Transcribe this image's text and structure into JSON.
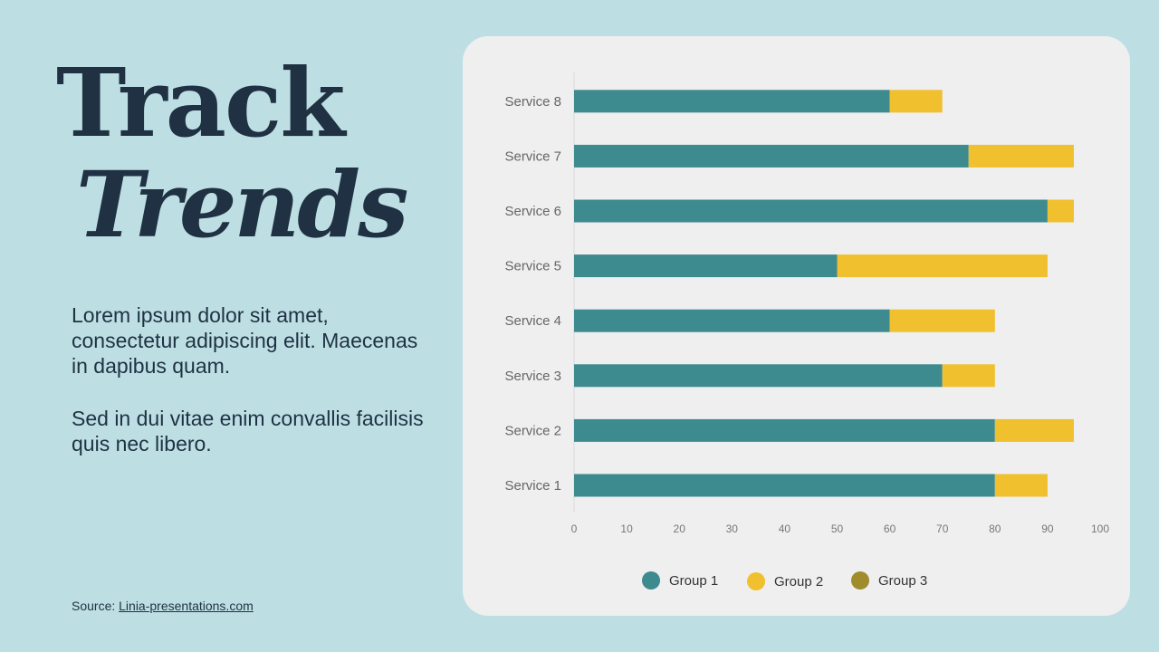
{
  "title": {
    "line1": "Track",
    "line2": "Trends"
  },
  "body": {
    "paragraph1": "Lorem ipsum dolor sit amet, consectetur adipiscing elit. Maecenas in dapibus quam.",
    "paragraph2": "Sed in dui vitae enim convallis facilisis quis nec libero."
  },
  "source": {
    "label": "Source: ",
    "link": "Linia-presentations.com"
  },
  "chart_data": {
    "type": "bar",
    "orientation": "horizontal",
    "stacked": true,
    "categories": [
      "Service 1",
      "Service 2",
      "Service 3",
      "Service 4",
      "Service 5",
      "Service 6",
      "Service 7",
      "Service 8"
    ],
    "series": [
      {
        "name": "Group 1",
        "color": "#3d8a8f",
        "values": [
          80,
          80,
          70,
          60,
          50,
          90,
          75,
          60
        ]
      },
      {
        "name": "Group 2",
        "color": "#f0c02e",
        "values": [
          10,
          15,
          10,
          20,
          40,
          5,
          20,
          10
        ]
      },
      {
        "name": "Group 3",
        "color": "#a08c2c",
        "values": [
          0,
          0,
          0,
          0,
          0,
          0,
          0,
          0
        ]
      }
    ],
    "xlim": [
      0,
      100
    ],
    "xticks": [
      0,
      10,
      20,
      30,
      40,
      50,
      60,
      70,
      80,
      90,
      100
    ],
    "grid": false,
    "legend": "bottom"
  }
}
